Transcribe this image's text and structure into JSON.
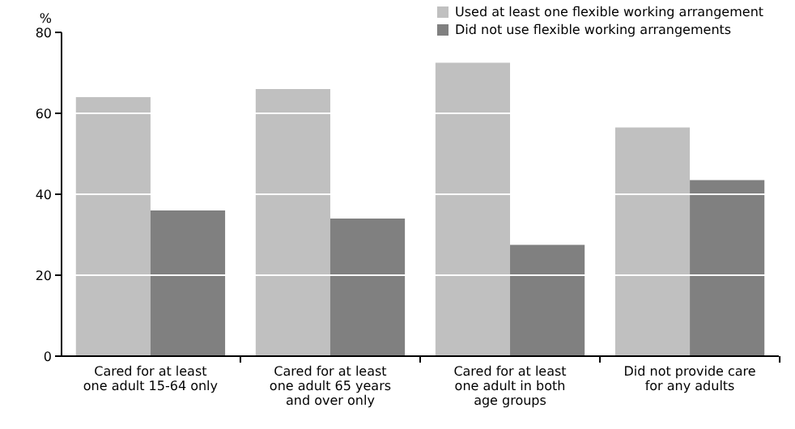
{
  "chart_data": {
    "type": "bar",
    "ylabel": "%",
    "categories": [
      "Cared for at least one adult 15-64 only",
      "Cared for at least one adult 65 years and over only",
      "Cared for at least one adult in both age groups",
      "Did not provide care for any adults"
    ],
    "series": [
      {
        "name": "Used at least one flexible working arrangement",
        "color": "#c0c0c0",
        "values": [
          64,
          66,
          72.5,
          56.5
        ]
      },
      {
        "name": "Did not use flexible working arrangements",
        "color": "#808080",
        "values": [
          36,
          34,
          27.5,
          43.5
        ]
      }
    ],
    "ylim": [
      0,
      80
    ],
    "yticks": [
      0,
      20,
      40,
      60,
      80
    ],
    "grid": "y",
    "legend": "top right"
  }
}
